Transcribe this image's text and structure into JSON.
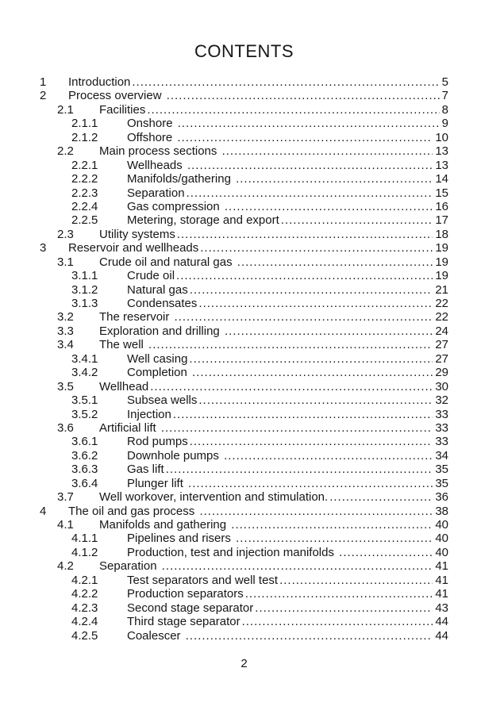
{
  "page": {
    "title": "CONTENTS",
    "footer_page_number": "2",
    "background_color": "#ffffff",
    "text_color": "#161616"
  },
  "toc": {
    "entries": [
      {
        "level": 1,
        "num": "1",
        "title": "Introduction",
        "page": "5"
      },
      {
        "level": 1,
        "num": "2",
        "title": "Process overview ",
        "page": "7"
      },
      {
        "level": 2,
        "num": "2.1",
        "title": "Facilities",
        "page": "8"
      },
      {
        "level": 3,
        "num": "2.1.1",
        "title": "Onshore ",
        "page": "9"
      },
      {
        "level": 3,
        "num": "2.1.2",
        "title": "Offshore ",
        "page": "10"
      },
      {
        "level": 2,
        "num": "2.2",
        "title": "Main process sections ",
        "page": "13"
      },
      {
        "level": 3,
        "num": "2.2.1",
        "title": "Wellheads ",
        "page": "13"
      },
      {
        "level": 3,
        "num": "2.2.2",
        "title": "Manifolds/gathering ",
        "page": "14"
      },
      {
        "level": 3,
        "num": "2.2.3",
        "title": "Separation",
        "page": "15"
      },
      {
        "level": 3,
        "num": "2.2.4",
        "title": "Gas compression ",
        "page": "16"
      },
      {
        "level": 3,
        "num": "2.2.5",
        "title": "Metering, storage and export",
        "page": "17"
      },
      {
        "level": 2,
        "num": "2.3",
        "title": "Utility systems",
        "page": "18"
      },
      {
        "level": 1,
        "num": "3",
        "title": "Reservoir and wellheads",
        "page": "19"
      },
      {
        "level": 2,
        "num": "3.1",
        "title": "Crude oil and natural gas ",
        "page": "19"
      },
      {
        "level": 3,
        "num": "3.1.1",
        "title": "Crude oil",
        "page": "19"
      },
      {
        "level": 3,
        "num": "3.1.2",
        "title": "Natural gas",
        "page": "21"
      },
      {
        "level": 3,
        "num": "3.1.3",
        "title": "Condensates",
        "page": "22"
      },
      {
        "level": 2,
        "num": "3.2",
        "title": "The reservoir ",
        "page": "22"
      },
      {
        "level": 2,
        "num": "3.3",
        "title": "Exploration and drilling ",
        "page": "24"
      },
      {
        "level": 2,
        "num": "3.4",
        "title": "The well ",
        "page": "27"
      },
      {
        "level": 3,
        "num": "3.4.1",
        "title": "Well casing",
        "page": "27"
      },
      {
        "level": 3,
        "num": "3.4.2",
        "title": "Completion ",
        "page": "29"
      },
      {
        "level": 2,
        "num": "3.5",
        "title": "Wellhead",
        "page": "30"
      },
      {
        "level": 3,
        "num": "3.5.1",
        "title": "Subsea wells",
        "page": "32"
      },
      {
        "level": 3,
        "num": "3.5.2",
        "title": "Injection",
        "page": "33"
      },
      {
        "level": 2,
        "num": "3.6",
        "title": "Artificial lift ",
        "page": "33"
      },
      {
        "level": 3,
        "num": "3.6.1",
        "title": "Rod pumps",
        "page": "33"
      },
      {
        "level": 3,
        "num": "3.6.2",
        "title": "Downhole pumps ",
        "page": "34"
      },
      {
        "level": 3,
        "num": "3.6.3",
        "title": "Gas lift",
        "page": "35"
      },
      {
        "level": 3,
        "num": "3.6.4",
        "title": "Plunger lift ",
        "page": "35"
      },
      {
        "level": 2,
        "num": "3.7",
        "title": "Well workover, intervention and stimulation.",
        "page": "36"
      },
      {
        "level": 1,
        "num": "4",
        "title": "The oil and gas process ",
        "page": "38"
      },
      {
        "level": 2,
        "num": "4.1",
        "title": "Manifolds and gathering ",
        "page": "40"
      },
      {
        "level": 3,
        "num": "4.1.1",
        "title": "Pipelines and risers ",
        "page": "40"
      },
      {
        "level": 3,
        "num": "4.1.2",
        "title": "Production, test and injection manifolds ",
        "page": "40"
      },
      {
        "level": 2,
        "num": "4.2",
        "title": "Separation ",
        "page": "41"
      },
      {
        "level": 3,
        "num": "4.2.1",
        "title": "Test separators and well test",
        "page": "41"
      },
      {
        "level": 3,
        "num": "4.2.2",
        "title": "Production separators",
        "page": "41"
      },
      {
        "level": 3,
        "num": "4.2.3",
        "title": "Second stage separator",
        "page": "43"
      },
      {
        "level": 3,
        "num": "4.2.4",
        "title": "Third stage separator",
        "page": "44"
      },
      {
        "level": 3,
        "num": "4.2.5",
        "title": "Coalescer ",
        "page": "44"
      }
    ]
  }
}
